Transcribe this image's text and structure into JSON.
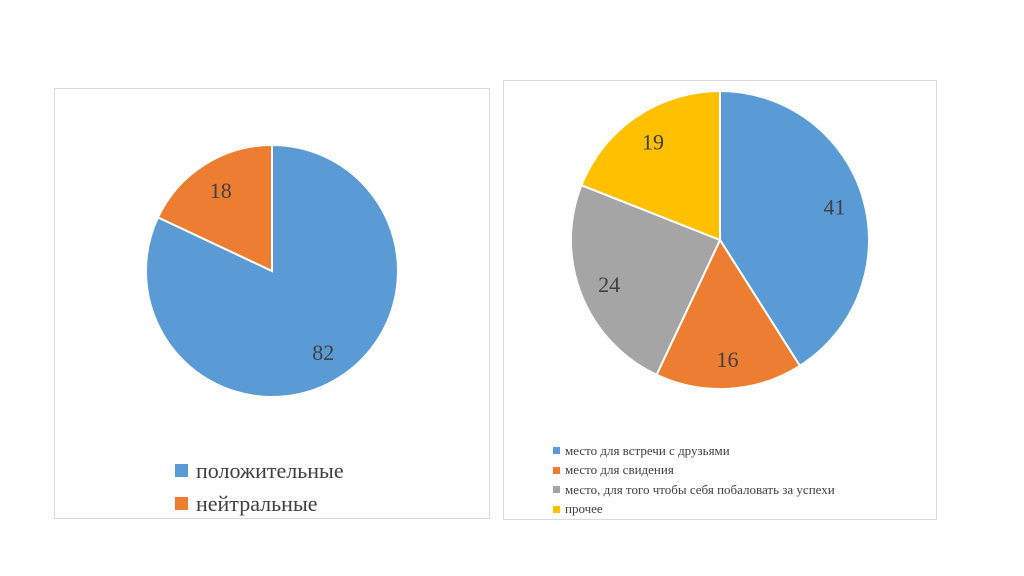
{
  "chart_data": [
    {
      "type": "pie",
      "categories": [
        "положительные",
        "нейтральные"
      ],
      "values": [
        82,
        18
      ],
      "colors": [
        "#5b9bd5",
        "#ed7d31"
      ],
      "data_labels": [
        "82",
        "18"
      ],
      "legend": {
        "position": "bottom",
        "entries": [
          "положительные",
          "нейтральные"
        ]
      },
      "title": ""
    },
    {
      "type": "pie",
      "categories": [
        "место для встречи с друзьями",
        "место для свидения",
        "место, для того чтобы себя побаловать за успехи",
        "прочее"
      ],
      "values": [
        41,
        16,
        24,
        19
      ],
      "colors": [
        "#5b9bd5",
        "#ed7d31",
        "#a5a5a5",
        "#ffc000"
      ],
      "data_labels": [
        "41",
        "16",
        "24",
        "19"
      ],
      "legend": {
        "position": "bottom",
        "entries": [
          "место для встречи с друзьями",
          "место для свидения",
          "место, для того чтобы себя побаловать за успехи",
          "прочее"
        ]
      },
      "title": ""
    }
  ]
}
